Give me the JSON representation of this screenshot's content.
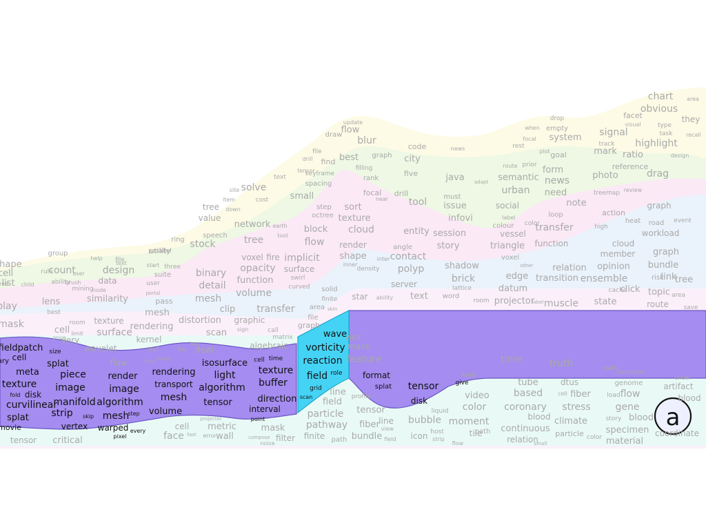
{
  "panel_label": "a",
  "colors": {
    "yellow_band": "#fdfbe6",
    "green_band": "#eef8e4",
    "pink_band": "#fbe9f6",
    "blue_band": "#eaf2fb",
    "pale_pink_band": "#fbf0fa",
    "purple_highlight": "#a48cf0",
    "cyan_highlight": "#45d3f5",
    "mint_band": "#e9faf6",
    "faded_word": "#a9a9a9",
    "highlight_word": "#111111"
  },
  "words": {
    "yellow": [
      "chart",
      "area",
      "obvious",
      "they",
      "facet",
      "visual",
      "type",
      "task",
      "recall",
      "drop",
      "empty",
      "system",
      "when",
      "focal",
      "rest",
      "signal",
      "track",
      "mark",
      "highlight",
      "design",
      "ratio",
      "update",
      "flow",
      "draw",
      "blur",
      "code",
      "news",
      "city",
      "graph",
      "file",
      "drill",
      "find",
      "best",
      "filling",
      "goal",
      "plot",
      "route",
      "prior",
      "form",
      "news",
      "need",
      "note",
      "reference",
      "photo",
      "drag",
      "text",
      "solve",
      "tensor",
      "keyframe",
      "spacing",
      "rank",
      "five",
      "java",
      "adapt",
      "semantic",
      "urban",
      "site",
      "item",
      "cost",
      "tree",
      "down",
      "value",
      "small",
      "focal",
      "near",
      "drill",
      "tool",
      "must",
      "issue",
      "social",
      "label",
      "colour",
      "treemap",
      "review",
      "action",
      "graph",
      "that",
      "note",
      "image",
      "axis",
      "sensitivity"
    ],
    "green": [
      "step",
      "octree",
      "sort",
      "texture",
      "network",
      "earth",
      "speech",
      "stock",
      "tree",
      "tool",
      "ring",
      "utility",
      "parallel",
      "group",
      "help",
      "file",
      "text",
      "shape",
      "cell",
      "rule",
      "count",
      "user",
      "ability",
      "brush",
      "mining",
      "design",
      "data",
      "node",
      "tree",
      "list",
      "child",
      "start",
      "three",
      "suite",
      "user",
      "portal",
      "similarity",
      "display",
      "lens",
      "best",
      "block",
      "flow",
      "cloud",
      "entity",
      "session",
      "story",
      "infovi",
      "vessel",
      "triangle",
      "function",
      "transfer",
      "color",
      "loop",
      "high",
      "heat",
      "road",
      "event",
      "workload",
      "cloud",
      "member",
      "graph",
      "bundle"
    ],
    "pink": [
      "binary",
      "detail",
      "function",
      "opacity",
      "voxel",
      "fire",
      "volume",
      "mesh",
      "clip",
      "pass",
      "mesh",
      "distortion",
      "graphic",
      "transfer",
      "implicit",
      "surface",
      "swirl",
      "curved",
      "render",
      "shape",
      "inter",
      "density",
      "inner",
      "contact",
      "polyp",
      "angle",
      "server",
      "shadow",
      "brick",
      "other",
      "voxel",
      "edge",
      "datum",
      "relation",
      "transition",
      "ensemble",
      "opinion",
      "risk",
      "link",
      "tree",
      "topic",
      "area",
      "route",
      "save",
      "muscle",
      "state",
      "projector",
      "label",
      "word",
      "lattice",
      "room",
      "solid",
      "finite",
      "area",
      "file",
      "skin",
      "graph",
      "kind",
      "star",
      "ability",
      "text",
      "cache",
      "click",
      "plot"
    ],
    "pale": [
      "mask",
      "room",
      "texture",
      "surface",
      "rendering",
      "kernel",
      "wavelet",
      "once",
      "very",
      "cell",
      "limit",
      "scan",
      "sign",
      "call",
      "matrix",
      "algebraic",
      "deal",
      "file",
      "loop",
      "leaf",
      "real",
      "stage",
      "flow",
      "visit",
      "mass",
      "feature",
      "time",
      "truth",
      "path",
      "threshold",
      "under"
    ],
    "purple": [
      "fieldpatch",
      "size",
      "vary",
      "cell",
      "meta",
      "splat",
      "texture",
      "fold",
      "disk",
      "curvilinear",
      "splat",
      "movie",
      "piece",
      "image",
      "manifold",
      "strip",
      "skip",
      "vertex",
      "render",
      "image",
      "algorithm",
      "mesh",
      "step",
      "warped",
      "pixel",
      "every",
      "rendering",
      "transport",
      "mesh",
      "volume",
      "isosurface",
      "light",
      "algorithm",
      "tensor",
      "cell",
      "time",
      "texture",
      "buffer",
      "direction",
      "interval",
      "point",
      "format",
      "splat",
      "tensor",
      "disk",
      "give"
    ],
    "cyan": [
      "wave",
      "vorticity",
      "reaction",
      "field",
      "role",
      "grid",
      "scan"
    ],
    "mint": [
      "tensor",
      "critical",
      "face",
      "cell",
      "fast",
      "error",
      "wall",
      "metric",
      "projector",
      "mask",
      "compose",
      "noise",
      "filter",
      "line",
      "field",
      "particle",
      "pathway",
      "finite",
      "path",
      "tensor",
      "fiber",
      "line",
      "view",
      "bundle",
      "field",
      "profile",
      "bubble",
      "liquid",
      "icon",
      "host",
      "strip",
      "video",
      "color",
      "moment",
      "tile",
      "path",
      "flow",
      "tube",
      "based",
      "coronary",
      "blood",
      "continuous",
      "relation",
      "small",
      "dtus",
      "cell",
      "fiber",
      "stress",
      "climate",
      "particle",
      "color",
      "genome",
      "load",
      "flow",
      "gene",
      "story",
      "blood",
      "specimen",
      "material",
      "artifact",
      "blood",
      "coordinate"
    ]
  }
}
